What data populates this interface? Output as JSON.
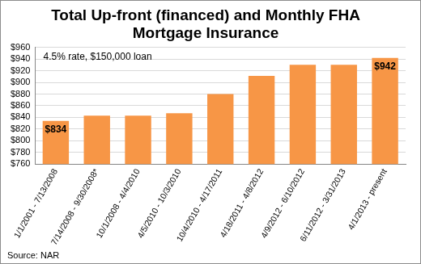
{
  "chart_data": {
    "type": "bar",
    "title": "Total Up-front (financed) and Monthly FHA Mortgage Insurance",
    "annotations": [
      "4.5% rate, $150,000 loan"
    ],
    "source": "Source: NAR",
    "categories": [
      "1/1/2001 - 7/13/2008",
      "7/14/2008 - 9/30/2008*",
      "10/1/2008 - 4/4/2010",
      "4/5/2010 - 10/3/2010",
      "10/4/2010 - 4/17/2011",
      "4/18/2011 - 4/8/2012",
      "4/9/2012 - 6/10/2012",
      "6/11/2012 - 3/31/2013",
      "4/1/2013 - present"
    ],
    "values": [
      834,
      843,
      843,
      847,
      880,
      911,
      930,
      930,
      942
    ],
    "value_labels": [
      "$834",
      null,
      null,
      null,
      null,
      null,
      null,
      null,
      "$942"
    ],
    "data_labels": true,
    "color": "#f79646",
    "ylim": [
      760,
      960
    ],
    "yticks": [
      {
        "value": 760,
        "label": "$760"
      },
      {
        "value": 780,
        "label": "$780"
      },
      {
        "value": 800,
        "label": "$800"
      },
      {
        "value": 820,
        "label": "$820"
      },
      {
        "value": 840,
        "label": "$840"
      },
      {
        "value": 860,
        "label": "$860"
      },
      {
        "value": 880,
        "label": "$880"
      },
      {
        "value": 900,
        "label": "$900"
      },
      {
        "value": 920,
        "label": "$920"
      },
      {
        "value": 940,
        "label": "$940"
      },
      {
        "value": 960,
        "label": "$960"
      }
    ],
    "grid": true
  }
}
